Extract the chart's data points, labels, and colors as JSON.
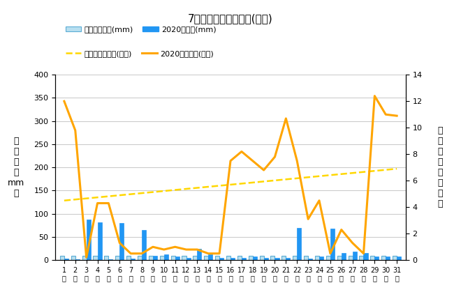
{
  "title": "7月降水量・日照時間(日別)",
  "days": [
    1,
    2,
    3,
    4,
    5,
    6,
    7,
    8,
    9,
    10,
    11,
    12,
    13,
    14,
    15,
    16,
    17,
    18,
    19,
    20,
    21,
    22,
    23,
    24,
    25,
    26,
    27,
    28,
    29,
    30,
    31
  ],
  "precip_avg": [
    10,
    10,
    10,
    10,
    10,
    10,
    10,
    10,
    10,
    10,
    10,
    10,
    10,
    10,
    10,
    10,
    10,
    10,
    10,
    10,
    10,
    10,
    10,
    10,
    10,
    10,
    10,
    10,
    10,
    10,
    10
  ],
  "precip_2020": [
    3,
    2,
    87,
    81,
    2,
    80,
    3,
    65,
    10,
    12,
    8,
    5,
    25,
    12,
    5,
    5,
    5,
    8,
    5,
    5,
    5,
    70,
    3,
    8,
    68,
    15,
    18,
    15,
    8,
    8,
    8
  ],
  "sunshine_avg": [
    4.5,
    4.58,
    4.66,
    4.74,
    4.82,
    4.9,
    4.98,
    5.06,
    5.14,
    5.22,
    5.3,
    5.38,
    5.46,
    5.54,
    5.62,
    5.7,
    5.78,
    5.86,
    5.94,
    6.02,
    6.1,
    6.18,
    6.26,
    6.34,
    6.42,
    6.5,
    6.58,
    6.66,
    6.74,
    6.82,
    6.9
  ],
  "sunshine_2020": [
    12.0,
    9.8,
    0.2,
    4.3,
    4.3,
    1.3,
    0.5,
    0.5,
    1.0,
    0.8,
    1.0,
    0.8,
    0.8,
    0.5,
    0.5,
    7.5,
    8.2,
    7.5,
    6.8,
    7.8,
    10.7,
    7.5,
    3.1,
    4.5,
    0.5,
    2.3,
    1.3,
    0.5,
    12.4,
    11.0,
    10.9
  ],
  "ylabel_left": "降\n水\n量\n（\nmm\n）",
  "ylabel_right": "日\n照\n時\n間\n（\n時\n間\n）",
  "ylim_left": [
    0,
    400
  ],
  "ylim_right": [
    0,
    14
  ],
  "yticks_left": [
    0,
    50,
    100,
    150,
    200,
    250,
    300,
    350,
    400
  ],
  "yticks_right": [
    0,
    2,
    4,
    6,
    8,
    10,
    12,
    14
  ],
  "bar_avg_color": "#b8dff0",
  "bar_avg_edge": "#5bacd4",
  "bar_2020_color": "#2196F3",
  "line_avg_color": "#FFD700",
  "line_2020_color": "#FFA500",
  "legend_labels": [
    "降水量平年値(mm)",
    "2020降水量(mm)",
    "日照時間平年値(時間)",
    "2020日照時間(時間)"
  ],
  "background_color": "#ffffff",
  "grid_color": "#cccccc",
  "figsize": [
    6.6,
    4.29
  ],
  "dpi": 100
}
